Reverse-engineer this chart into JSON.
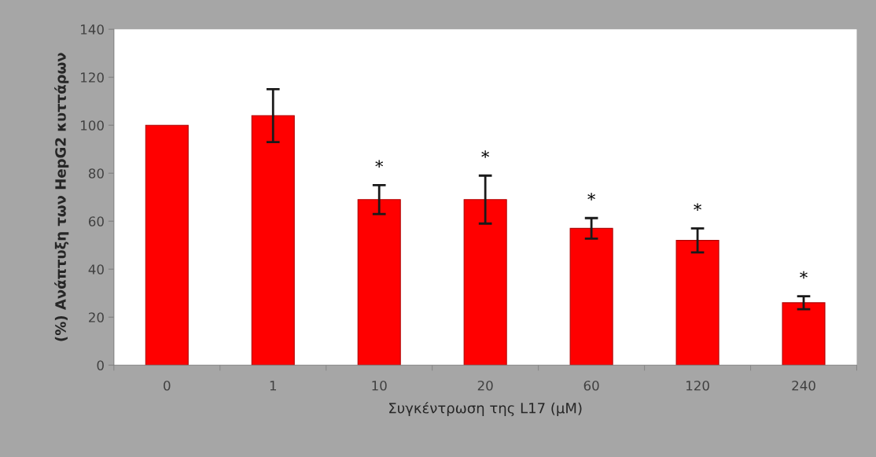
{
  "chart_data": {
    "type": "bar",
    "xlabel": "Συγκέντρωση της L17 (μM)",
    "ylabel": "(%) Ανάπτυξη των HepG2 κυττάρων",
    "categories": [
      "0",
      "1",
      "10",
      "20",
      "60",
      "120",
      "240"
    ],
    "values": [
      100,
      104,
      69,
      69,
      57,
      52,
      26
    ],
    "errors": [
      null,
      11,
      6,
      10,
      4.3,
      5,
      2.7
    ],
    "color": "#ff0000",
    "ylim": [
      0,
      140
    ],
    "yticks": [
      0,
      20,
      40,
      60,
      80,
      100,
      120,
      140
    ],
    "grid": false,
    "legend": false,
    "annotations": [
      {
        "text": "*",
        "x": "10",
        "y": 75
      },
      {
        "text": "*",
        "x": "20",
        "y": 79
      },
      {
        "text": "*",
        "x": "60",
        "y": 61.3
      },
      {
        "text": "*",
        "x": "120",
        "y": 57
      },
      {
        "text": "*",
        "x": "240",
        "y": 28.7
      }
    ]
  }
}
